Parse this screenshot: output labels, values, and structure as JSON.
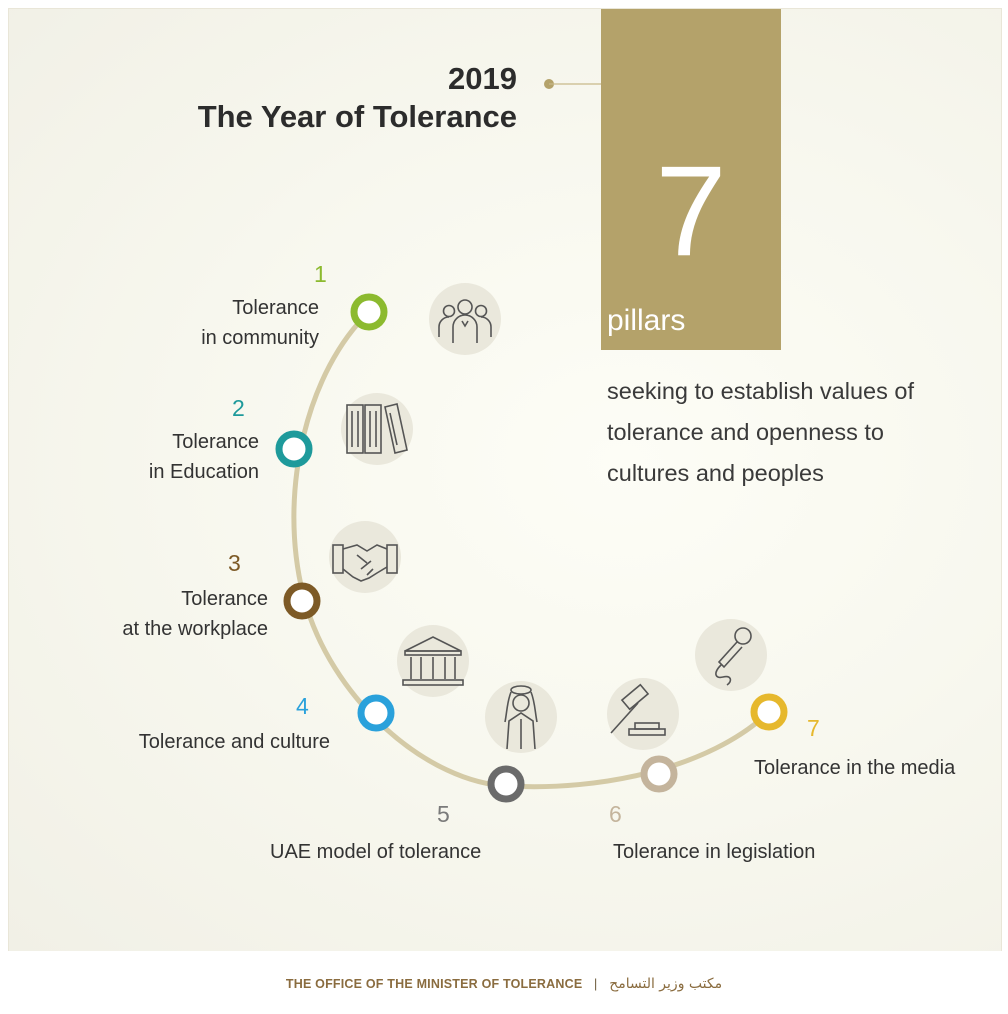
{
  "header": {
    "year": "2019",
    "title": "The Year of Tolerance"
  },
  "highlight": {
    "number": "7",
    "label": "pillars"
  },
  "description": [
    "seeking to establish values of",
    "tolerance and openness to",
    "cultures and peoples"
  ],
  "pillars": [
    {
      "number": "1",
      "line1": "Tolerance",
      "line2": "in community",
      "icon": "people-group-icon",
      "color": "#8cba2f"
    },
    {
      "number": "2",
      "line1": "Tolerance",
      "line2": "in Education",
      "icon": "books-icon",
      "color": "#1e9a9b"
    },
    {
      "number": "3",
      "line1": "Tolerance",
      "line2": "at the workplace",
      "icon": "handshake-icon",
      "color": "#7d5a26"
    },
    {
      "number": "4",
      "line1": "Tolerance and culture",
      "icon": "museum-icon",
      "color": "#2aa1db"
    },
    {
      "number": "5",
      "line1": "UAE model of tolerance",
      "icon": "emirati-man-icon",
      "color": "#6b6b6b"
    },
    {
      "number": "6",
      "line1": "Tolerance in legislation",
      "icon": "gavel-icon",
      "color": "#c4b49c"
    },
    {
      "number": "7",
      "line1": "Tolerance in the media",
      "icon": "microphone-icon",
      "color": "#e6b82d"
    }
  ],
  "footer": {
    "english": "THE OFFICE OF THE MINISTER OF TOLERANCE",
    "separator": "|",
    "arabic": "مكتب وزير التسامح"
  },
  "colors": {
    "gold": "#b4a26a",
    "arc": "#d7cfae",
    "text": "#2c2c2c"
  }
}
